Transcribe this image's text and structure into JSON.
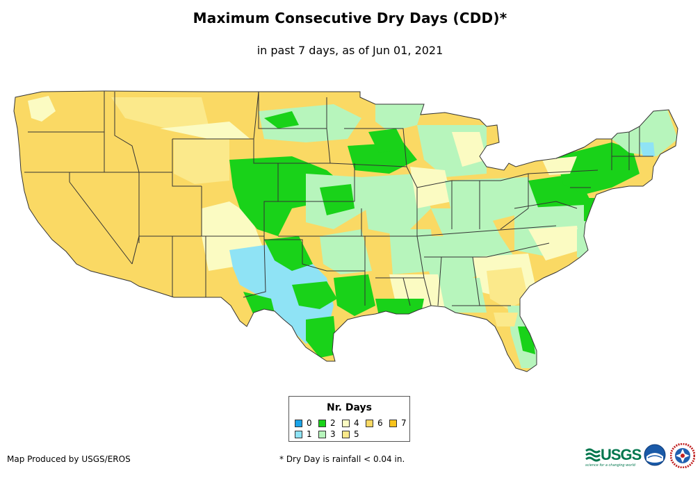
{
  "title": "Maximum Consecutive Dry Days (CDD)*",
  "subtitle": "in past 7 days, as of Jun 01, 2021",
  "legend": {
    "title": "Nr. Days",
    "items": [
      {
        "label": "0",
        "color": "#1aa3e8"
      },
      {
        "label": "1",
        "color": "#8fe3f5"
      },
      {
        "label": "2",
        "color": "#19d219"
      },
      {
        "label": "3",
        "color": "#b7f5bc"
      },
      {
        "label": "4",
        "color": "#fbfbc2"
      },
      {
        "label": "5",
        "color": "#fbe98b"
      },
      {
        "label": "6",
        "color": "#fad964"
      },
      {
        "label": "7",
        "color": "#f7c31c"
      }
    ]
  },
  "credit": "Map Produced by USGS/EROS",
  "footnote": "* Dry Day is rainfall < 0.04 in.",
  "logos": {
    "usgs_text": "USGS",
    "usgs_tagline": "science for a changing world"
  },
  "colors": {
    "state_border": "#333333",
    "background": "#ffffff"
  }
}
